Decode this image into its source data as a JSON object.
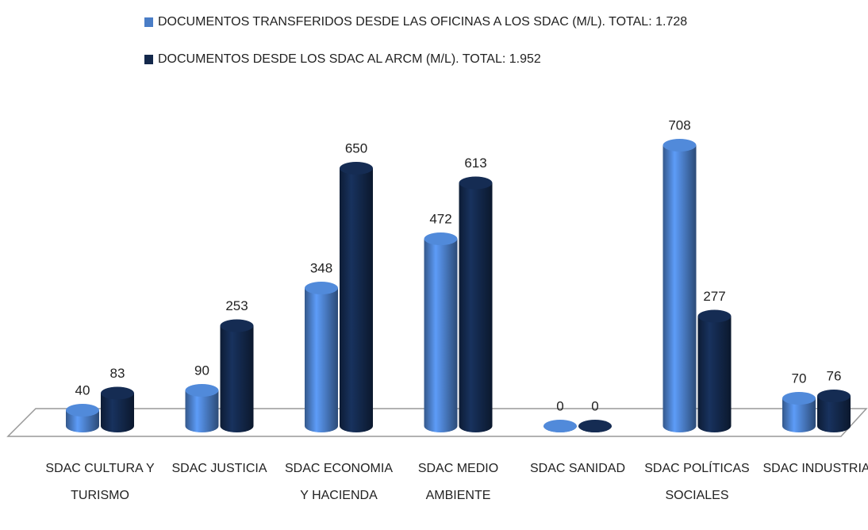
{
  "chart_data": {
    "type": "bar3d",
    "categories": [
      "SDAC CULTURA Y TURISMO",
      "SDAC JUSTICIA",
      "SDAC ECONOMIA Y HACIENDA",
      "SDAC MEDIO AMBIENTE",
      "SDAC SANIDAD",
      "SDAC POLÍTICAS SOCIALES",
      "SDAC INDUSTRIA"
    ],
    "series": [
      {
        "name": "DOCUMENTOS TRANSFERIDOS DESDE LAS OFICINAS A LOS SDAC (M/L). TOTAL: 1.728",
        "color": "#4a7dc6",
        "values": [
          40,
          90,
          348,
          472,
          0,
          708,
          70
        ]
      },
      {
        "name": "DOCUMENTOS DESDE LOS SDAC AL ARCM (M/L). TOTAL: 1.952",
        "color": "#13284b",
        "values": [
          83,
          253,
          650,
          613,
          0,
          277,
          76
        ]
      }
    ]
  }
}
